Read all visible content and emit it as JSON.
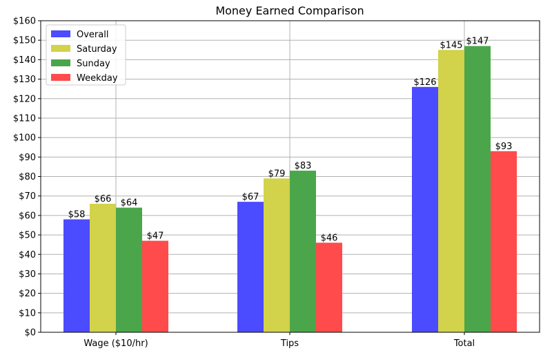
{
  "chart_data": {
    "type": "bar",
    "title": "Money Earned Comparison",
    "xlabel": "",
    "ylabel": "",
    "categories": [
      "Wage ($10/hr)",
      "Tips",
      "Total"
    ],
    "series": [
      {
        "name": "Overall",
        "values": [
          58,
          67,
          126
        ],
        "labels": [
          "$58",
          "$67",
          "$126"
        ],
        "color": "#4b4bff"
      },
      {
        "name": "Saturday",
        "values": [
          66,
          79,
          145
        ],
        "labels": [
          "$66",
          "$79",
          "$145"
        ],
        "color": "#d2d24b"
      },
      {
        "name": "Sunday",
        "values": [
          64,
          83,
          147
        ],
        "labels": [
          "$64",
          "$83",
          "$147"
        ],
        "color": "#4ba64b"
      },
      {
        "name": "Weekday",
        "values": [
          47,
          46,
          93
        ],
        "labels": [
          "$47",
          "$46",
          "$93"
        ],
        "color": "#ff4b4b"
      }
    ],
    "ylim": [
      0,
      160
    ],
    "yticks": [
      0,
      10,
      20,
      30,
      40,
      50,
      60,
      70,
      80,
      90,
      100,
      110,
      120,
      130,
      140,
      150,
      160
    ],
    "ytick_labels": [
      "$0",
      "$10",
      "$20",
      "$30",
      "$40",
      "$50",
      "$60",
      "$70",
      "$80",
      "$90",
      "$100",
      "$110",
      "$120",
      "$130",
      "$140",
      "$150",
      "$160"
    ],
    "grid": true,
    "legend_position": "top-left"
  }
}
